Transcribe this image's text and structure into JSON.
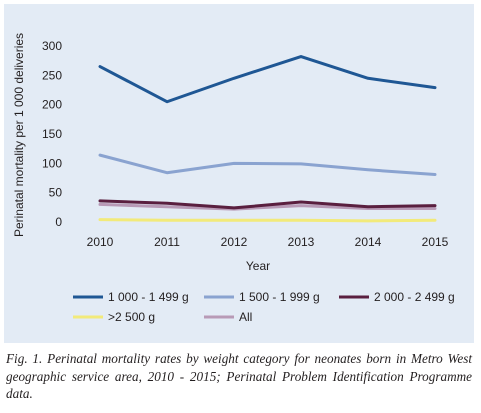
{
  "chart_data": {
    "type": "line",
    "x": [
      2010,
      2011,
      2012,
      2013,
      2014,
      2015
    ],
    "xlabel": "Year",
    "ylabel": "Perinatal mortality per 1 000 deliveries",
    "ylim": [
      0,
      300
    ],
    "yticks": [
      "0",
      "50",
      "100",
      "150",
      "200",
      "250",
      "300"
    ],
    "xticks": [
      "2010",
      "2011",
      "2012",
      "2013",
      "2014",
      "2015"
    ],
    "grid": false,
    "legend_placement": "bottom",
    "series": [
      {
        "name": "1 000 - 1 499 g",
        "color": "#1f5794",
        "values": [
          265,
          205,
          245,
          282,
          245,
          229
        ]
      },
      {
        "name": "1 500 - 1 999 g",
        "color": "#8aa3d0",
        "values": [
          114,
          84,
          100,
          99,
          89,
          81
        ]
      },
      {
        "name": "2 000 - 2 499 g",
        "color": "#5a1f3f",
        "values": [
          36,
          32,
          24,
          34,
          26,
          28
        ]
      },
      {
        "name": ">2 500 g",
        "color": "#f2ea7a",
        "values": [
          4,
          3,
          3,
          3,
          2,
          3
        ]
      },
      {
        "name": "All",
        "color": "#b89ab6",
        "values": [
          30,
          26,
          22,
          28,
          23,
          23
        ]
      }
    ]
  },
  "caption": "Fig. 1. Perinatal mortality rates by weight category for neonates born in Metro West geographic service area, 2010 - 2015; Perinatal Problem Identification Programme data."
}
